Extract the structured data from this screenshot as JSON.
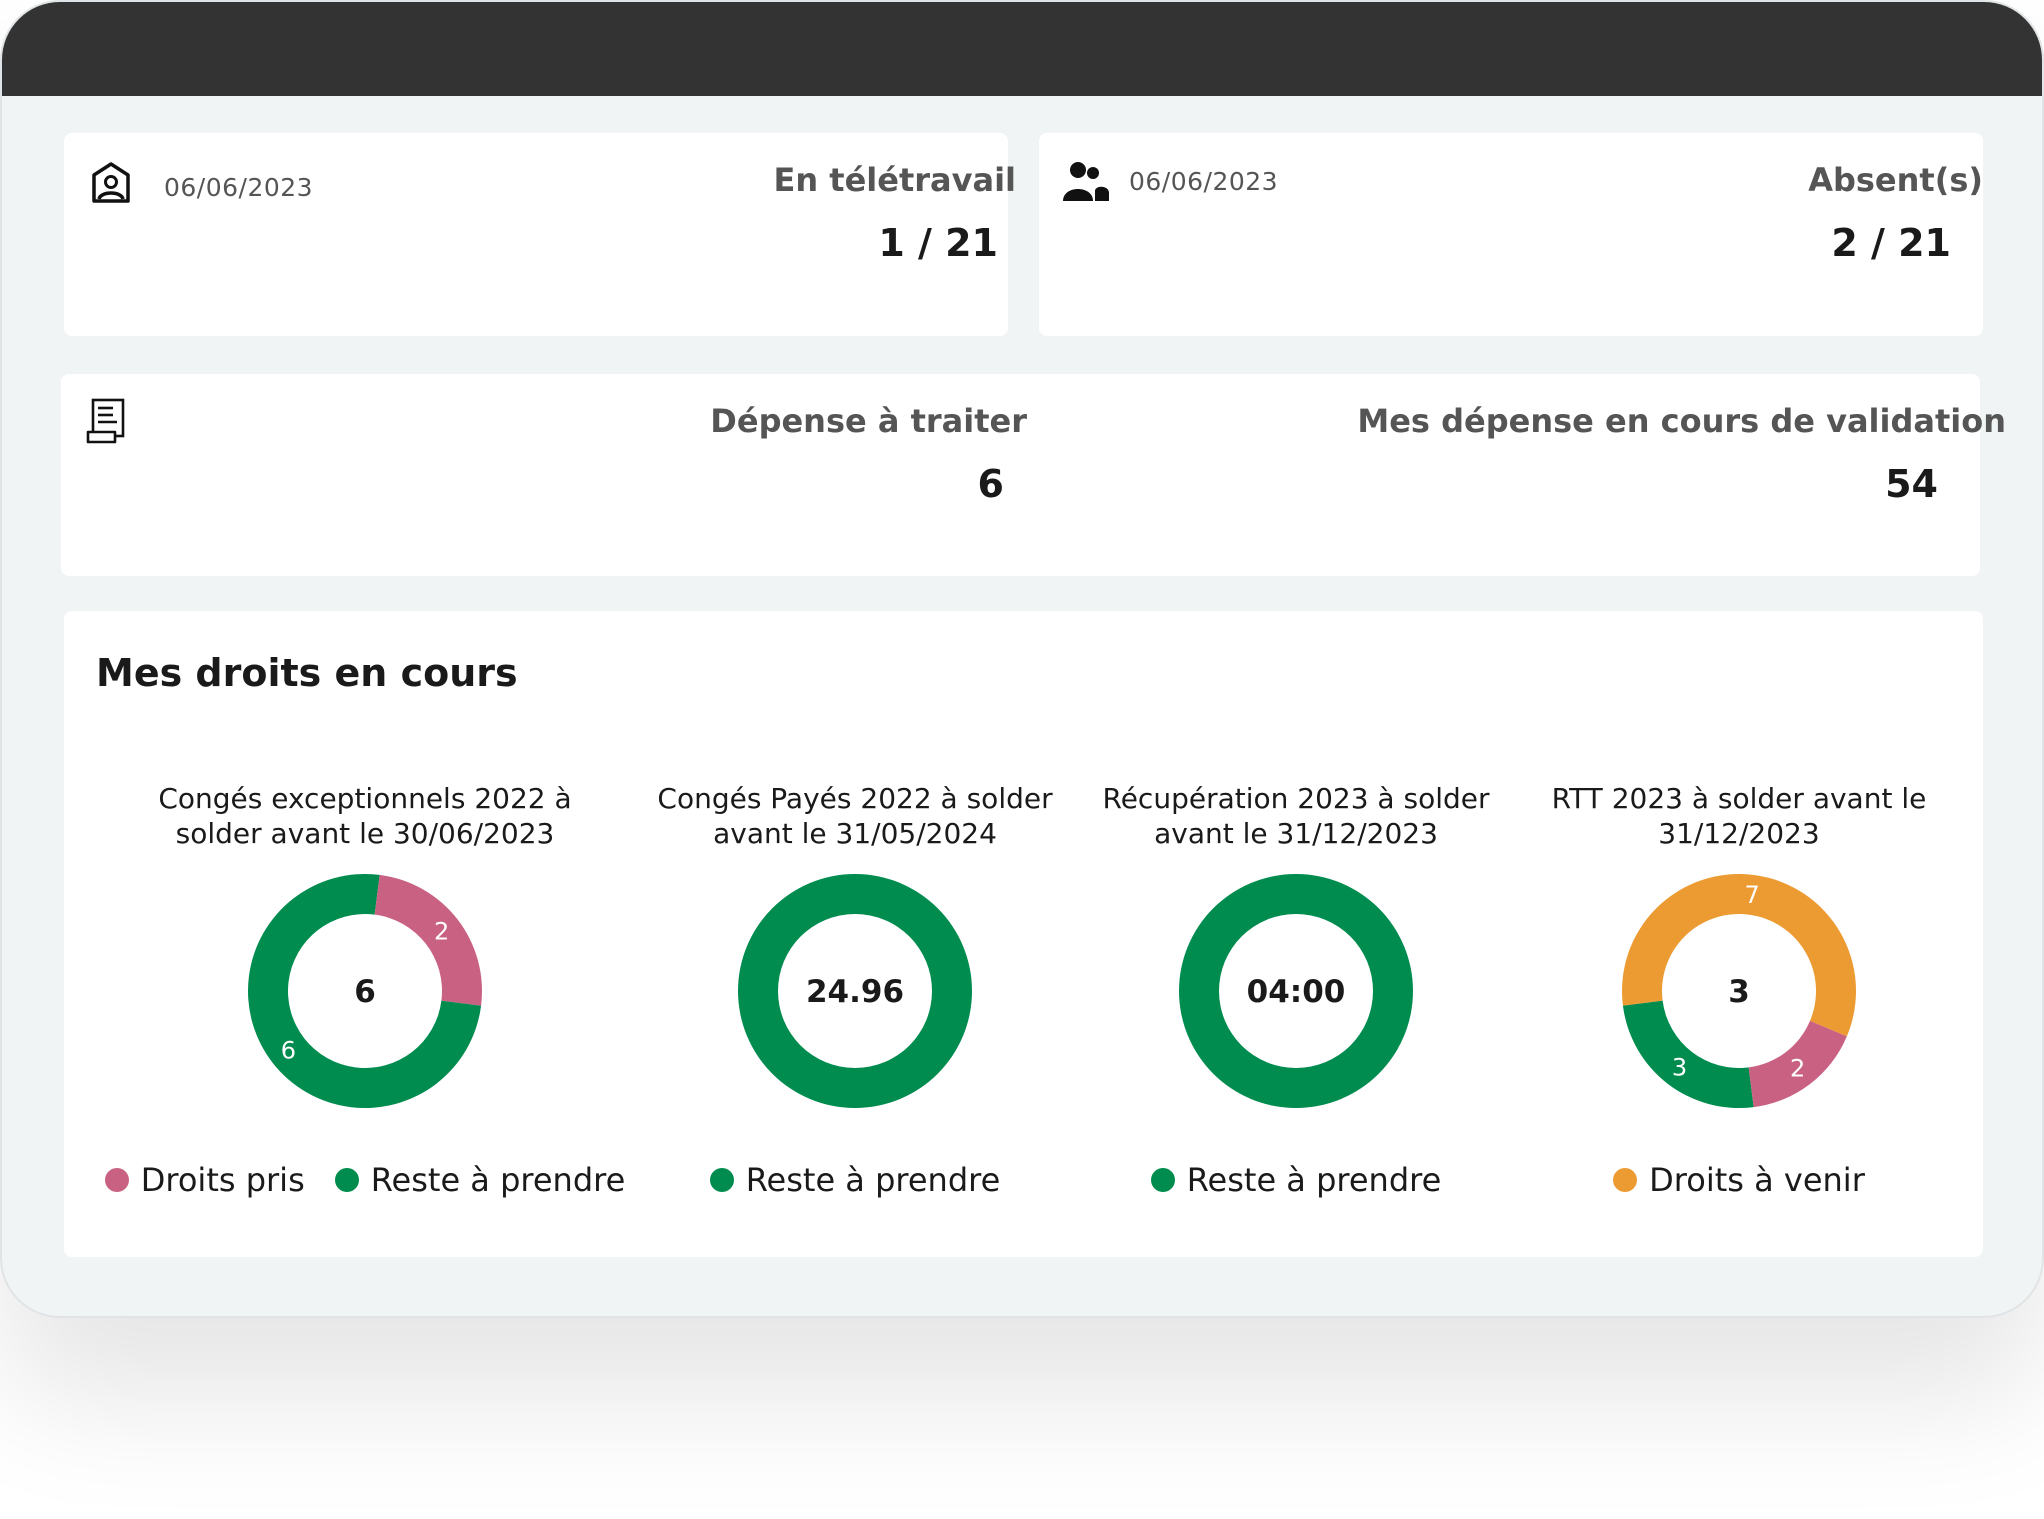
{
  "colors": {
    "green": "#008c4f",
    "pink": "#c96282",
    "orange": "#ec9b33",
    "titlebar": "#333333"
  },
  "teletravail": {
    "icon": "home-user-icon",
    "date": "06/06/2023",
    "title": "En télétravail",
    "value": "1 / 21"
  },
  "absents": {
    "icon": "users-icon",
    "date": "06/06/2023",
    "title": "Absent(s)",
    "value": "2 / 21"
  },
  "depenses": {
    "icon": "receipt-icon",
    "a_traiter_title": "Dépense à traiter",
    "a_traiter_value": "6",
    "validation_title": "Mes dépense en cours de validation",
    "validation_value": "54"
  },
  "droits": {
    "title": "Mes droits en cours"
  },
  "chart_data": [
    {
      "type": "pie",
      "title": "Congés exceptionnels 2022 à solder avant le 30/06/2023",
      "center_label": "6",
      "slices": [
        {
          "name": "Reste à prendre",
          "value": 6,
          "label": "6",
          "color": "#008c4f"
        },
        {
          "name": "Droits pris",
          "value": 2,
          "label": "2",
          "color": "#c96282"
        }
      ],
      "legend": [
        {
          "name": "Droits pris",
          "color": "#c96282"
        },
        {
          "name": "Reste à prendre",
          "color": "#008c4f"
        }
      ]
    },
    {
      "type": "pie",
      "title": "Congés Payés 2022 à solder avant le 31/05/2024",
      "center_label": "24.96",
      "slices": [
        {
          "name": "Reste à prendre",
          "value": 24.96,
          "label": "",
          "color": "#008c4f"
        }
      ],
      "legend": [
        {
          "name": "Reste à prendre",
          "color": "#008c4f"
        }
      ]
    },
    {
      "type": "pie",
      "title": "Récupération 2023 à solder avant le 31/12/2023",
      "center_label": "04:00",
      "slices": [
        {
          "name": "Reste à prendre",
          "value": 4,
          "label": "",
          "color": "#008c4f"
        }
      ],
      "legend": [
        {
          "name": "Reste à prendre",
          "color": "#008c4f"
        }
      ]
    },
    {
      "type": "pie",
      "title": "RTT 2023 à solder avant le 31/12/2023",
      "center_label": "3",
      "slices": [
        {
          "name": "Reste à prendre",
          "value": 3,
          "label": "3",
          "color": "#008c4f"
        },
        {
          "name": "Droits à venir",
          "value": 7,
          "label": "7",
          "color": "#ec9b33"
        },
        {
          "name": "Droits pris",
          "value": 2,
          "label": "2",
          "color": "#c96282"
        }
      ],
      "legend": [
        {
          "name": "Droits à venir",
          "color": "#ec9b33"
        }
      ]
    }
  ]
}
